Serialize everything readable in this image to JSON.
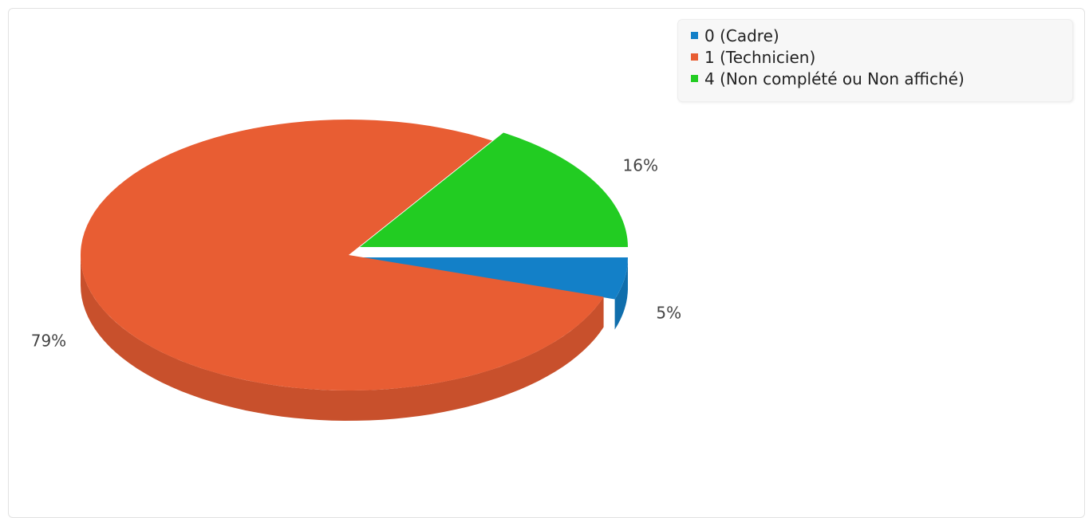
{
  "chart_data": {
    "type": "pie",
    "style": "3d",
    "categories": [
      "0 (Cadre)",
      "1 (Technicien)",
      "4 (Non complété ou Non affiché)"
    ],
    "values": [
      5,
      79,
      16
    ],
    "labels": [
      "5%",
      "79%",
      "16%"
    ],
    "colors": [
      "#1380C8",
      "#E85D33",
      "#22CC22"
    ],
    "legend_position": "top-right"
  }
}
